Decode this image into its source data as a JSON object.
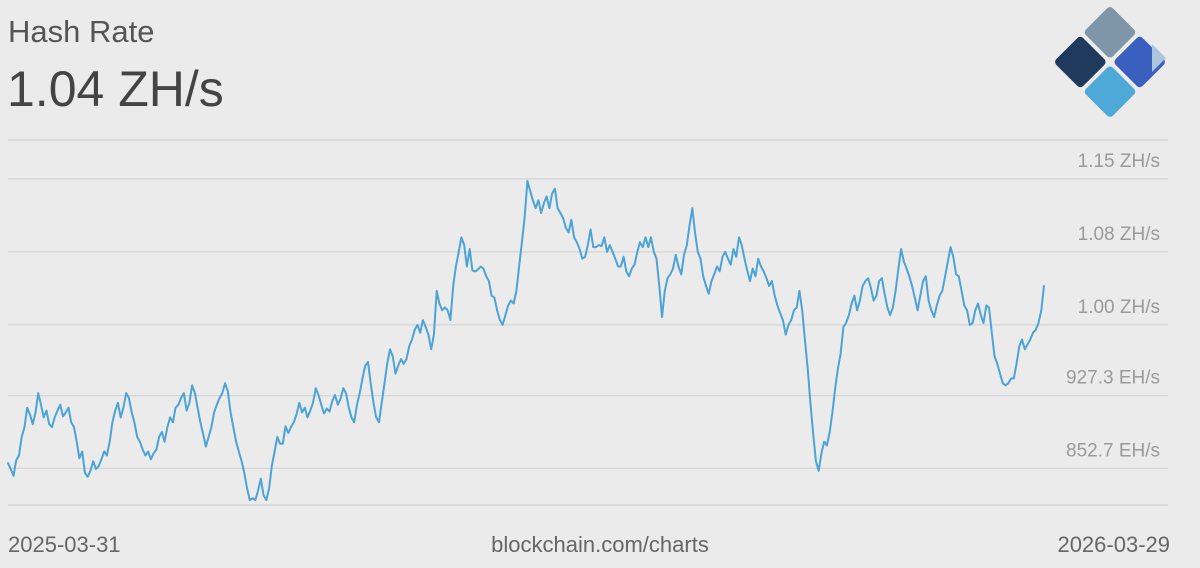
{
  "header": {
    "title": "Hash Rate",
    "current_value": "1.04 ZH/s"
  },
  "footer": {
    "start_date": "2025-03-31",
    "source": "blockchain.com/charts",
    "end_date": "2026-03-29"
  },
  "logo": {
    "icon": "blockchain-diamond-icon",
    "colors": [
      "#7f95a8",
      "#1f3a5c",
      "#3a5fbf",
      "#4ea8d8",
      "#a9c6dd"
    ]
  },
  "chart_data": {
    "type": "line",
    "title": "Hash Rate",
    "xlabel": "",
    "ylabel": "",
    "x_range": [
      "2025-03-31",
      "2026-03-29"
    ],
    "ylim": [
      815,
      1190
    ],
    "yticks": [
      {
        "value": 852.7,
        "label": "852.7 EH/s"
      },
      {
        "value": 927.3,
        "label": "927.3 EH/s"
      },
      {
        "value": 1000,
        "label": "1.00 ZH/s"
      },
      {
        "value": 1075,
        "label": "1.08 ZH/s"
      },
      {
        "value": 1150,
        "label": "1.15 ZH/s"
      }
    ],
    "grid": true,
    "line_color": "#4ca3d5",
    "series": [
      {
        "name": "",
        "values": [
          858,
          852,
          845,
          861,
          866,
          885,
          895,
          915,
          908,
          898,
          910,
          930,
          918,
          905,
          912,
          898,
          895,
          905,
          912,
          918,
          906,
          910,
          915,
          900,
          895,
          880,
          863,
          870,
          848,
          844,
          850,
          860,
          852,
          855,
          862,
          870,
          866,
          880,
          900,
          912,
          920,
          905,
          915,
          930,
          925,
          910,
          900,
          885,
          880,
          872,
          866,
          870,
          862,
          868,
          872,
          885,
          890,
          880,
          895,
          905,
          900,
          915,
          918,
          925,
          930,
          912,
          920,
          938,
          930,
          915,
          900,
          888,
          875,
          885,
          895,
          910,
          918,
          925,
          930,
          940,
          932,
          910,
          895,
          880,
          870,
          860,
          848,
          832,
          820,
          822,
          820,
          830,
          842,
          825,
          820,
          832,
          855,
          870,
          885,
          878,
          878,
          896,
          889,
          895,
          900,
          908,
          920,
          910,
          915,
          905,
          912,
          920,
          935,
          928,
          918,
          909,
          914,
          911,
          922,
          928,
          918,
          924,
          935,
          930,
          915,
          905,
          900,
          918,
          930,
          945,
          958,
          962,
          940,
          920,
          905,
          900,
          920,
          940,
          960,
          975,
          968,
          950,
          958,
          965,
          960,
          965,
          978,
          985,
          995,
          1000,
          992,
          1005,
          998,
          990,
          975,
          990,
          1035,
          1022,
          1015,
          1018,
          1015,
          1005,
          1040,
          1060,
          1075,
          1090,
          1082,
          1060,
          1078,
          1056,
          1055,
          1057,
          1060,
          1058,
          1050,
          1045,
          1030,
          1028,
          1015,
          1005,
          1000,
          1010,
          1020,
          1025,
          1022,
          1035,
          1060,
          1085,
          1110,
          1148,
          1138,
          1128,
          1120,
          1128,
          1115,
          1125,
          1132,
          1120,
          1135,
          1140,
          1120,
          1115,
          1110,
          1100,
          1095,
          1108,
          1090,
          1085,
          1078,
          1068,
          1070,
          1082,
          1098,
          1080,
          1080,
          1082,
          1081,
          1090,
          1075,
          1082,
          1075,
          1068,
          1060,
          1060,
          1070,
          1055,
          1050,
          1058,
          1062,
          1075,
          1085,
          1080,
          1090,
          1080,
          1090,
          1075,
          1068,
          1040,
          1008,
          1035,
          1048,
          1052,
          1058,
          1072,
          1060,
          1052,
          1072,
          1082,
          1102,
          1120,
          1095,
          1075,
          1068,
          1050,
          1040,
          1032,
          1045,
          1052,
          1060,
          1055,
          1070,
          1075,
          1068,
          1062,
          1078,
          1070,
          1090,
          1082,
          1068,
          1056,
          1045,
          1058,
          1050,
          1068,
          1060,
          1055,
          1048,
          1040,
          1045,
          1030,
          1020,
          1012,
          1005,
          990,
          1000,
          1005,
          1015,
          1018,
          1035,
          1015,
          985,
          955,
          920,
          888,
          860,
          850,
          868,
          880,
          876,
          890,
          910,
          935,
          955,
          970,
          998,
          1002,
          1010,
          1022,
          1030,
          1015,
          1025,
          1040,
          1045,
          1048,
          1038,
          1025,
          1030,
          1045,
          1048,
          1032,
          1018,
          1010,
          1018,
          1035,
          1058,
          1078,
          1065,
          1058,
          1050,
          1040,
          1028,
          1015,
          1030,
          1045,
          1050,
          1025,
          1015,
          1008,
          1020,
          1030,
          1035,
          1050,
          1065,
          1080,
          1070,
          1052,
          1050,
          1035,
          1020,
          1015,
          1000,
          1002,
          1015,
          1022,
          1010,
          1002,
          1020,
          1018,
          992,
          968,
          960,
          950,
          940,
          938,
          940,
          945,
          945,
          960,
          978,
          985,
          975,
          980,
          985,
          992,
          995,
          1002,
          1015,
          1040
        ]
      }
    ]
  }
}
